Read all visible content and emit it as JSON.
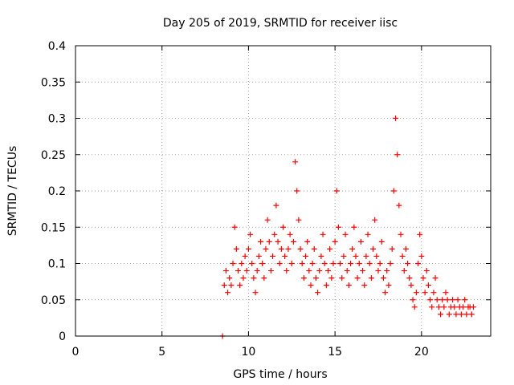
{
  "chart_data": {
    "type": "scatter",
    "title": "Day 205 of 2019, SRMTID for receiver iisc",
    "xlabel": "GPS time / hours",
    "ylabel": "SRMTID / TECUs",
    "xlim": [
      0,
      24
    ],
    "ylim": [
      0,
      0.4
    ],
    "x_ticks": [
      "0",
      "5",
      "10",
      "15",
      "20"
    ],
    "y_ticks": [
      "0",
      "0.05",
      "0.1",
      "0.15",
      "0.2",
      "0.25",
      "0.3",
      "0.35",
      "0.4"
    ],
    "grid": true,
    "legend": "none",
    "marker": "+",
    "color": "#ff0000",
    "series": [
      {
        "x": [
          8.5,
          8.6,
          8.7,
          8.8,
          8.9,
          9.0,
          9.1,
          9.2,
          9.3,
          9.4,
          9.5,
          9.6,
          9.7,
          9.8,
          9.9,
          10.0,
          10.1,
          10.2,
          10.3,
          10.4,
          10.5,
          10.6,
          10.7,
          10.8,
          10.9,
          11.0,
          11.1,
          11.2,
          11.3,
          11.4,
          11.5,
          11.6,
          11.7,
          11.8,
          11.9,
          12.0,
          12.1,
          12.2,
          12.3,
          12.4,
          12.5,
          12.6,
          12.7,
          12.8,
          12.9,
          13.0,
          13.1,
          13.2,
          13.3,
          13.4,
          13.5,
          13.6,
          13.7,
          13.8,
          13.9,
          14.0,
          14.1,
          14.2,
          14.3,
          14.4,
          14.5,
          14.6,
          14.7,
          14.8,
          14.9,
          15.0,
          15.1,
          15.2,
          15.3,
          15.4,
          15.5,
          15.6,
          15.7,
          15.8,
          15.9,
          16.0,
          16.1,
          16.2,
          16.3,
          16.4,
          16.5,
          16.6,
          16.7,
          16.8,
          16.9,
          17.0,
          17.1,
          17.2,
          17.3,
          17.4,
          17.5,
          17.6,
          17.7,
          17.8,
          17.9,
          18.0,
          18.1,
          18.2,
          18.3,
          18.4,
          18.5,
          18.6,
          18.7,
          18.8,
          18.9,
          19.0,
          19.1,
          19.2,
          19.3,
          19.4,
          19.5,
          19.6,
          19.7,
          19.8,
          19.9,
          20.0,
          20.1,
          20.2,
          20.3,
          20.4,
          20.5,
          20.6,
          20.7,
          20.8,
          20.9,
          21.0,
          21.1,
          21.2,
          21.3,
          21.4,
          21.5,
          21.6,
          21.7,
          21.8,
          21.9,
          22.0,
          22.1,
          22.2,
          22.3,
          22.4,
          22.5,
          22.6,
          22.7,
          22.8,
          22.9,
          23.0
        ],
        "y": [
          0.0,
          0.07,
          0.09,
          0.06,
          0.08,
          0.07,
          0.1,
          0.15,
          0.12,
          0.09,
          0.07,
          0.1,
          0.08,
          0.11,
          0.09,
          0.12,
          0.14,
          0.1,
          0.08,
          0.06,
          0.09,
          0.11,
          0.13,
          0.1,
          0.08,
          0.12,
          0.16,
          0.13,
          0.09,
          0.11,
          0.14,
          0.18,
          0.13,
          0.1,
          0.12,
          0.15,
          0.11,
          0.09,
          0.12,
          0.14,
          0.1,
          0.13,
          0.24,
          0.2,
          0.16,
          0.12,
          0.1,
          0.08,
          0.11,
          0.13,
          0.09,
          0.07,
          0.1,
          0.12,
          0.08,
          0.06,
          0.09,
          0.11,
          0.14,
          0.1,
          0.07,
          0.09,
          0.12,
          0.08,
          0.1,
          0.13,
          0.2,
          0.15,
          0.1,
          0.08,
          0.11,
          0.14,
          0.09,
          0.07,
          0.1,
          0.12,
          0.15,
          0.11,
          0.08,
          0.1,
          0.13,
          0.09,
          0.07,
          0.11,
          0.14,
          0.1,
          0.08,
          0.12,
          0.16,
          0.11,
          0.09,
          0.1,
          0.13,
          0.08,
          0.06,
          0.09,
          0.07,
          0.1,
          0.12,
          0.2,
          0.3,
          0.25,
          0.18,
          0.14,
          0.11,
          0.09,
          0.12,
          0.1,
          0.08,
          0.07,
          0.05,
          0.04,
          0.06,
          0.1,
          0.14,
          0.11,
          0.08,
          0.06,
          0.09,
          0.07,
          0.05,
          0.04,
          0.06,
          0.08,
          0.05,
          0.04,
          0.03,
          0.05,
          0.04,
          0.06,
          0.05,
          0.03,
          0.04,
          0.05,
          0.04,
          0.03,
          0.05,
          0.04,
          0.03,
          0.04,
          0.05,
          0.03,
          0.04,
          0.04,
          0.03,
          0.04
        ]
      }
    ]
  }
}
